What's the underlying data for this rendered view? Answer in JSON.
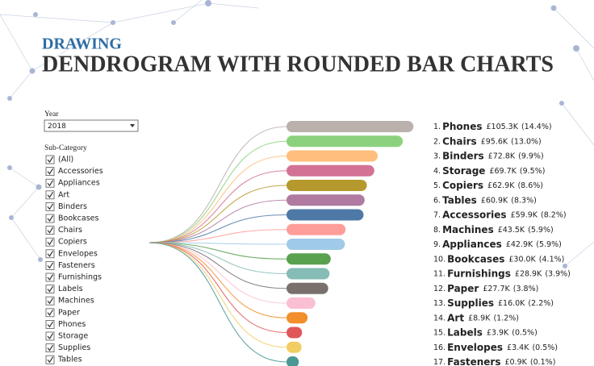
{
  "header": {
    "kicker": "DRAWING",
    "title": "DENDROGRAM WITH ROUNDED BAR CHARTS"
  },
  "filters": {
    "year_label": "Year",
    "year": "2018",
    "subcategory_label": "Sub-Category",
    "options": [
      "(All)",
      "Accessories",
      "Appliances",
      "Art",
      "Binders",
      "Bookcases",
      "Chairs",
      "Copiers",
      "Envelopes",
      "Fasteners",
      "Furnishings",
      "Labels",
      "Machines",
      "Paper",
      "Phones",
      "Storage",
      "Supplies",
      "Tables"
    ]
  },
  "chart_data": {
    "type": "bar",
    "ranks": [
      "1.",
      "2.",
      "3.",
      "4.",
      "5.",
      "6.",
      "7.",
      "8.",
      "9.",
      "10.",
      "11.",
      "12.",
      "13.",
      "14.",
      "15.",
      "16.",
      "17."
    ],
    "categories": [
      "Phones",
      "Chairs",
      "Binders",
      "Storage",
      "Copiers",
      "Tables",
      "Accessories",
      "Machines",
      "Appliances",
      "Bookcases",
      "Furnishings",
      "Paper",
      "Supplies",
      "Art",
      "Labels",
      "Envelopes",
      "Fasteners"
    ],
    "values": [
      105.3,
      95.6,
      72.8,
      69.7,
      62.9,
      60.9,
      59.9,
      43.5,
      42.9,
      30.0,
      28.9,
      27.7,
      16.0,
      8.9,
      3.9,
      3.4,
      0.9
    ],
    "value_labels": [
      "£105.3K",
      "£95.6K",
      "£72.8K",
      "£69.7K",
      "£62.9K",
      "£60.9K",
      "£59.9K",
      "£43.5K",
      "£42.9K",
      "£30.0K",
      "£28.9K",
      "£27.7K",
      "£16.0K",
      "£8.9K",
      "£3.9K",
      "£3.4K",
      "£0.9K"
    ],
    "shares": [
      14.4,
      13.0,
      9.9,
      9.5,
      8.6,
      8.3,
      8.2,
      5.9,
      5.9,
      4.1,
      3.9,
      3.8,
      2.2,
      1.2,
      0.5,
      0.5,
      0.1
    ],
    "share_labels": [
      "(14.4%)",
      "(13.0%)",
      "(9.9%)",
      "(9.5%)",
      "(8.6%)",
      "(8.3%)",
      "(8.2%)",
      "(5.9%)",
      "(5.9%)",
      "(4.1%)",
      "(3.9%)",
      "(3.8%)",
      "(2.2%)",
      "(1.2%)",
      "(0.5%)",
      "(0.5%)",
      "(0.1%)"
    ],
    "colors": [
      "#bab0ac",
      "#8cd17d",
      "#ffbe7d",
      "#d37295",
      "#b6992d",
      "#b07aa1",
      "#4e79a7",
      "#ff9d9a",
      "#a0cbe8",
      "#59a14f",
      "#86bcb6",
      "#79706e",
      "#fabfd2",
      "#f28e2b",
      "#e15759",
      "#f1ce63",
      "#499894"
    ]
  }
}
